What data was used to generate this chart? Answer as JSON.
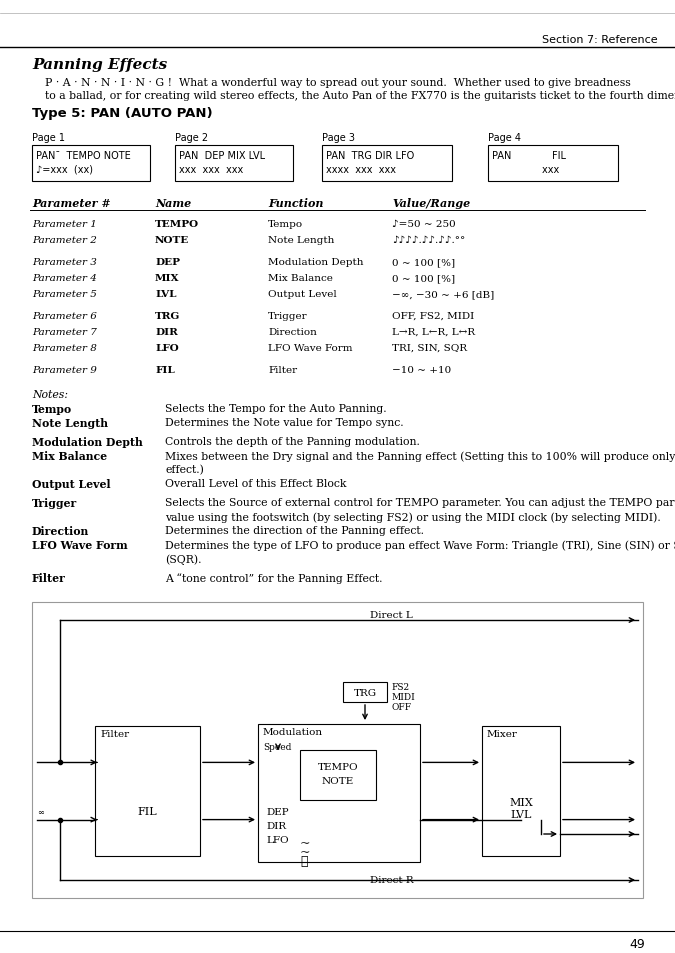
{
  "page_bg": "#ffffff",
  "header_text": "Section 7: Reference",
  "footer_page_num": "49",
  "title": "Panning Effects",
  "intro_line1": "P · A · N · N · I · N · G !  What a wonderful way to spread out your sound.  Whether used to give breadness",
  "intro_line2": "to a ballad, or for creating wild stereo effects, the Auto Pan of the FX770 is the guitarists ticket to the fourth dimension!",
  "section_title": "Type 5: PAN (AUTO PAN)",
  "page_labels": [
    "Page 1",
    "Page 2",
    "Page 3",
    "Page 4"
  ],
  "page_box_lines": [
    [
      "PAN¯  TEMPO NOTE",
      "♪=xxx  (xx)"
    ],
    [
      "PAN  DEP MIX LVL",
      "xxx  xxx  xxx"
    ],
    [
      "PAN  TRG DIR LFO",
      "xxxx  xxx  xxx"
    ],
    [
      "PAN             FIL",
      "                xxx"
    ]
  ],
  "table_headers": [
    "Parameter #",
    "Name",
    "Function",
    "Value/Range"
  ],
  "table_rows": [
    [
      "Parameter 1",
      "TEMPO",
      "Tempo",
      "♪=50 ~ 250"
    ],
    [
      "Parameter 2",
      "NOTE",
      "Note Length",
      "♪♪♪♪.♪♪.♪♪.°°"
    ],
    [
      null,
      null,
      null,
      null
    ],
    [
      "Parameter 3",
      "DEP",
      "Modulation Depth",
      "0 ~ 100 [%]"
    ],
    [
      "Parameter 4",
      "MIX",
      "Mix Balance",
      "0 ~ 100 [%]"
    ],
    [
      "Parameter 5",
      "LVL",
      "Output Level",
      "−∞, −30 ~ +6 [dB]"
    ],
    [
      null,
      null,
      null,
      null
    ],
    [
      "Parameter 6",
      "TRG",
      "Trigger",
      "OFF, FS2, MIDI"
    ],
    [
      "Parameter 7",
      "DIR",
      "Direction",
      "L→R, L←R, L↔R"
    ],
    [
      "Parameter 8",
      "LFO",
      "LFO Wave Form",
      "TRI, SIN, SQR"
    ],
    [
      null,
      null,
      null,
      null
    ],
    [
      "Parameter 9",
      "FIL",
      "Filter",
      "−10 ~ +10"
    ]
  ],
  "notes": [
    {
      "term": "Notes:",
      "bold": false,
      "italic": true,
      "def": "",
      "def2": ""
    },
    {
      "term": "Tempo",
      "bold": true,
      "italic": false,
      "def": "Selects the Tempo for the Auto Panning.",
      "def2": ""
    },
    {
      "term": "Note Length",
      "bold": true,
      "italic": false,
      "def": "Determines the Note value for Tempo sync.",
      "def2": ""
    },
    {
      "term": "",
      "bold": false,
      "italic": false,
      "def": "",
      "def2": ""
    },
    {
      "term": "Modulation Depth",
      "bold": true,
      "italic": false,
      "def": "Controls the depth of the Panning modulation.",
      "def2": ""
    },
    {
      "term": "Mix Balance",
      "bold": true,
      "italic": false,
      "def": "Mixes between the Dry signal and the Panning effect (Setting this to 100% will produce only the chorus",
      "def2": "effect.)"
    },
    {
      "term": "Output Level",
      "bold": true,
      "italic": false,
      "def": "Overall Level of this Effect Block",
      "def2": ""
    },
    {
      "term": "",
      "bold": false,
      "italic": false,
      "def": "",
      "def2": ""
    },
    {
      "term": "Trigger",
      "bold": true,
      "italic": false,
      "def": "Selects the Source of external control for TEMPO parameter. You can adjust the TEMPO parameter",
      "def2": "value using the footswitch (by selecting FS2) or using the MIDI clock (by selecting MIDI)."
    },
    {
      "term": "Direction",
      "bold": true,
      "italic": false,
      "def": "Determines the direction of the Panning effect.",
      "def2": ""
    },
    {
      "term": "LFO Wave Form",
      "bold": true,
      "italic": false,
      "def": "Determines the type of LFO to produce pan effect Wave Form: Triangle (TRI), Sine (SIN) or Square",
      "def2": "(SQR)."
    },
    {
      "term": "",
      "bold": false,
      "italic": false,
      "def": "",
      "def2": ""
    },
    {
      "term": "Filter",
      "bold": true,
      "italic": false,
      "def": "A “tone control” for the Panning Effect.",
      "def2": ""
    }
  ]
}
